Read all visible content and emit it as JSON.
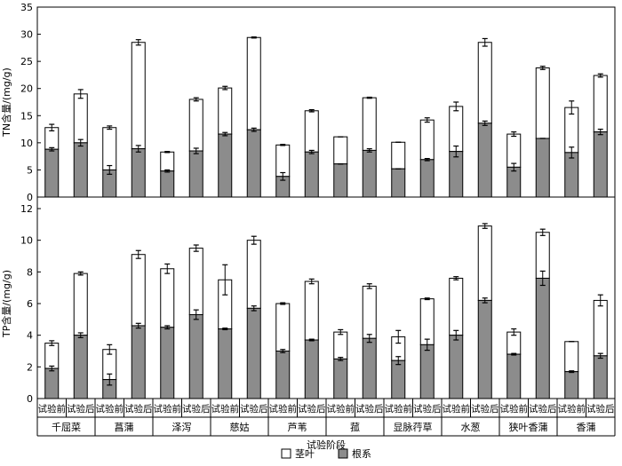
{
  "chart_data": {
    "type": "bar",
    "stacked": true,
    "xlabel": "试验阶段",
    "species": [
      "千屈菜",
      "菖蒲",
      "泽泻",
      "慈姑",
      "芦苇",
      "菰",
      "显脉荇草",
      "水葱",
      "狭叶香蒲",
      "香蒲"
    ],
    "stages": [
      "试验前",
      "试验后"
    ],
    "legend": {
      "placement": "bottom-center",
      "items": [
        "茎叶",
        "根系"
      ]
    },
    "series_colors": {
      "茎叶": "#ffffff",
      "根系": "#8c8c8c"
    },
    "panels": [
      {
        "name": "TN",
        "ylabel": "TN含量/(mg/g)",
        "ylim": [
          0,
          35
        ],
        "yticks": [
          0,
          5,
          10,
          15,
          20,
          25,
          30,
          35
        ],
        "root_values": [
          8.8,
          10.0,
          5.0,
          8.9,
          4.8,
          8.5,
          11.6,
          12.4,
          3.8,
          8.3,
          6.1,
          8.6,
          5.2,
          6.9,
          8.4,
          13.6,
          5.5,
          10.8,
          8.2,
          12.0
        ],
        "root_errors": [
          0.3,
          0.6,
          0.8,
          0.6,
          0.2,
          0.5,
          0.3,
          0.3,
          0.7,
          0.3,
          0.0,
          0.3,
          0.0,
          0.2,
          1.0,
          0.4,
          0.7,
          0.0,
          1.0,
          0.5
        ],
        "total_values": [
          12.8,
          19.0,
          12.8,
          28.5,
          8.3,
          18.0,
          20.1,
          29.4,
          9.6,
          15.9,
          11.1,
          18.3,
          10.1,
          14.2,
          16.7,
          28.5,
          11.6,
          23.8,
          16.5,
          22.4
        ],
        "total_errors": [
          0.6,
          0.8,
          0.3,
          0.5,
          0.1,
          0.3,
          0.3,
          0.1,
          0.1,
          0.2,
          0.0,
          0.1,
          0.0,
          0.4,
          0.8,
          0.7,
          0.4,
          0.3,
          1.2,
          0.3
        ]
      },
      {
        "name": "TP",
        "ylabel": "TP含量/(mg/g)",
        "ylim": [
          0,
          12
        ],
        "yticks": [
          0,
          2,
          4,
          6,
          8,
          10,
          12
        ],
        "root_values": [
          1.9,
          4.0,
          1.2,
          4.6,
          4.5,
          5.3,
          4.4,
          5.7,
          3.0,
          3.7,
          2.5,
          3.8,
          2.4,
          3.4,
          4.0,
          6.2,
          2.8,
          7.6,
          1.7,
          2.7
        ],
        "root_errors": [
          0.15,
          0.15,
          0.35,
          0.15,
          0.1,
          0.3,
          0.05,
          0.15,
          0.1,
          0.05,
          0.1,
          0.25,
          0.25,
          0.35,
          0.3,
          0.15,
          0.05,
          0.45,
          0.05,
          0.15
        ],
        "total_values": [
          3.5,
          7.9,
          3.1,
          9.1,
          8.2,
          9.5,
          7.5,
          10.0,
          6.0,
          7.4,
          4.2,
          7.1,
          3.9,
          6.3,
          7.6,
          10.9,
          4.2,
          10.5,
          3.6,
          6.2
        ],
        "total_errors": [
          0.15,
          0.1,
          0.3,
          0.25,
          0.3,
          0.2,
          0.95,
          0.25,
          0.05,
          0.15,
          0.15,
          0.15,
          0.4,
          0.05,
          0.1,
          0.15,
          0.2,
          0.2,
          0.0,
          0.35
        ]
      }
    ]
  }
}
